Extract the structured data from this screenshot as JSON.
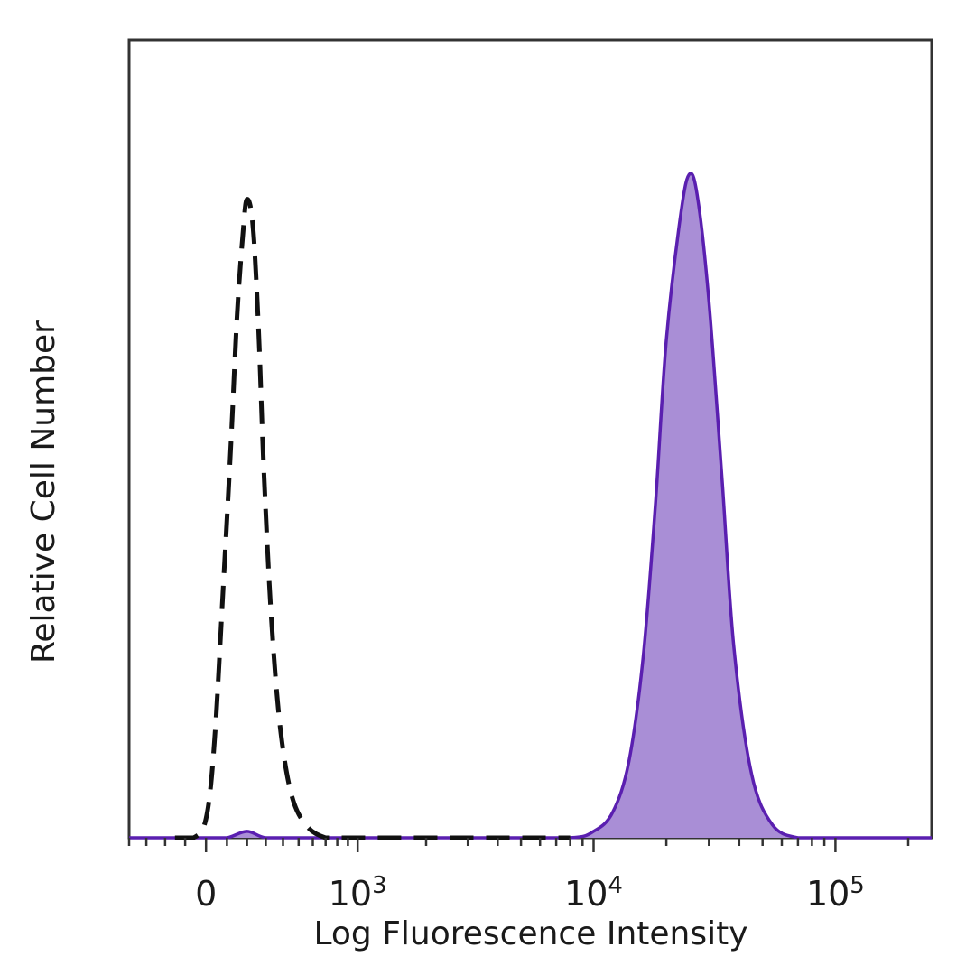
{
  "chart_data": {
    "type": "area",
    "title": "",
    "xlabel": "Log Fluorescence Intensity",
    "ylabel": "Relative Cell Number",
    "x_scale": "biexponential",
    "xlim": [
      -400,
      250000
    ],
    "ylim": [
      0,
      1.25
    ],
    "grid": false,
    "x_tick_labels": [
      {
        "value": 0,
        "base": "0",
        "sup": ""
      },
      {
        "value": 1000,
        "base": "10",
        "sup": "3"
      },
      {
        "value": 10000,
        "base": "10",
        "sup": "4"
      },
      {
        "value": 100000,
        "base": "10",
        "sup": "5"
      }
    ],
    "series": [
      {
        "style": "dashed",
        "filled": false,
        "stroke": "#111111",
        "x": [
          -150,
          -60,
          0,
          40,
          80,
          120,
          150,
          180,
          200,
          230,
          260,
          290,
          330,
          380,
          450,
          550,
          700,
          900,
          1100,
          1500,
          3000,
          8000
        ],
        "y": [
          0.0,
          0.0,
          0.03,
          0.15,
          0.38,
          0.62,
          0.82,
          0.95,
          1.0,
          0.96,
          0.8,
          0.57,
          0.35,
          0.18,
          0.07,
          0.02,
          0.0,
          0.0,
          0.0,
          0.0,
          0.0,
          0.0
        ]
      },
      {
        "style": "solid",
        "filled": true,
        "stroke": "#5a1fb0",
        "fill": "#a98ed6",
        "x": [
          -400,
          -100,
          0,
          100,
          200,
          300,
          500,
          800,
          1500,
          4000,
          8000,
          10000,
          12000,
          14000,
          16000,
          18000,
          20000,
          23000,
          25000,
          27000,
          30000,
          34000,
          38000,
          45000,
          55000,
          70000,
          90000,
          150000,
          250000
        ],
        "y": [
          0.0,
          0.0,
          0.0,
          0.0,
          0.01,
          0.0,
          0.0,
          0.0,
          0.0,
          0.0,
          0.0,
          0.01,
          0.04,
          0.12,
          0.28,
          0.52,
          0.78,
          0.98,
          1.04,
          1.0,
          0.84,
          0.56,
          0.3,
          0.1,
          0.02,
          0.0,
          0.0,
          0.0,
          0.0
        ]
      }
    ]
  }
}
